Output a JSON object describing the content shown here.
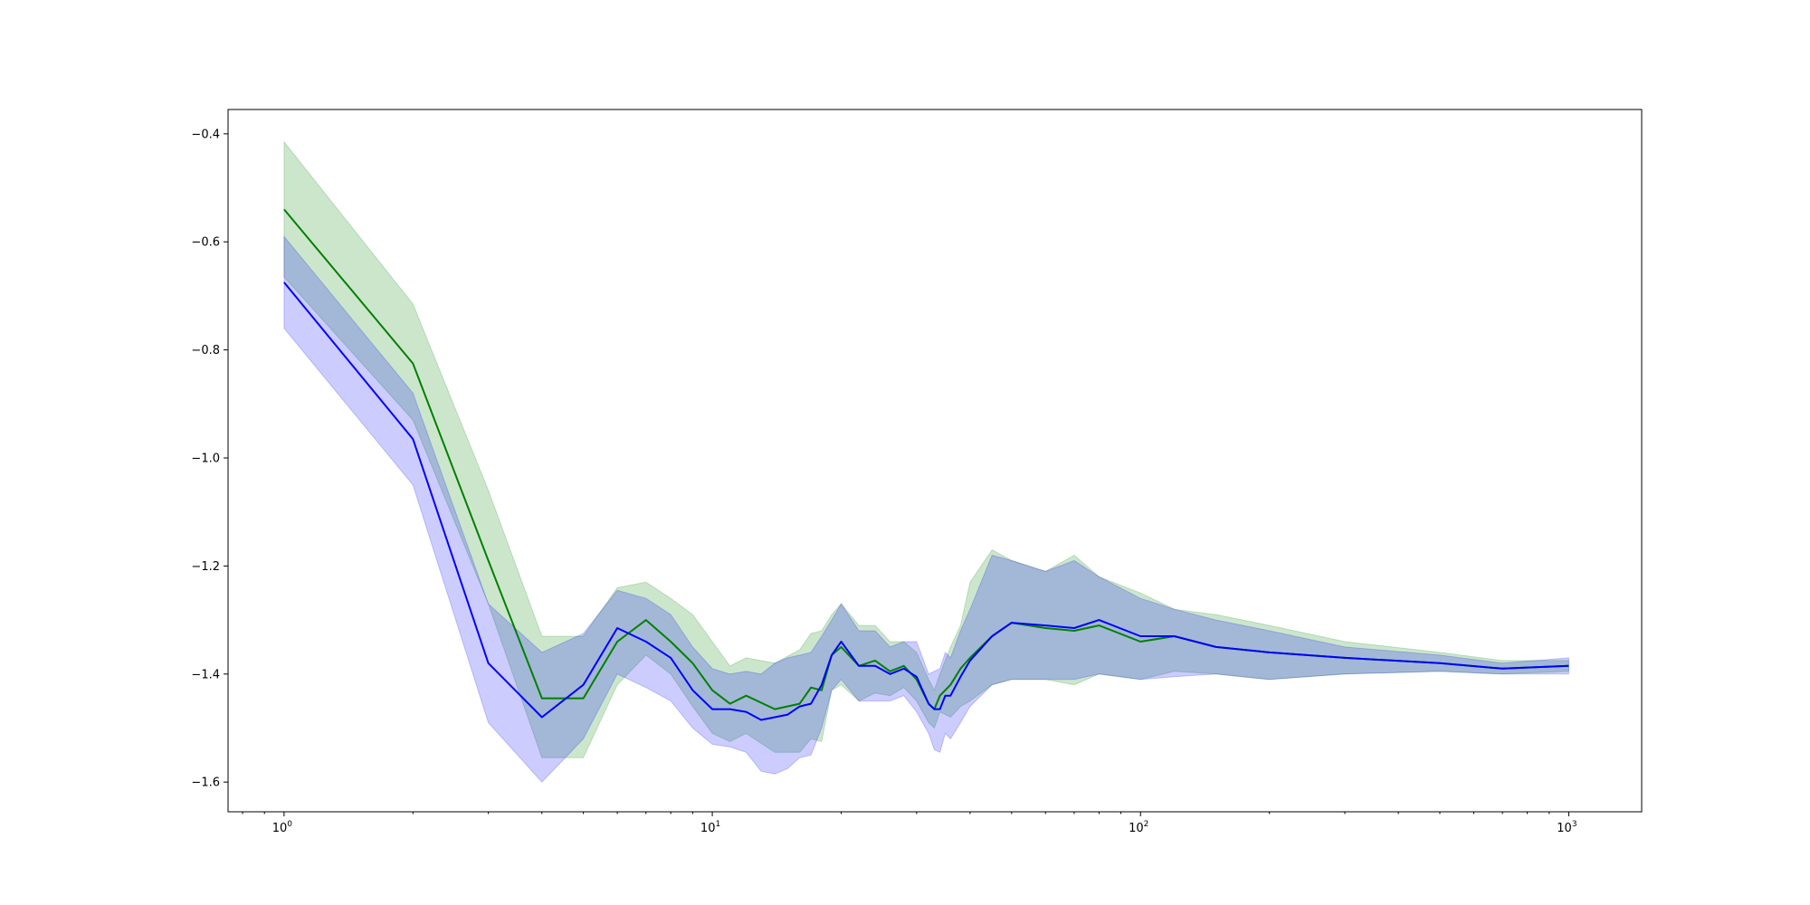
{
  "chart_data": {
    "type": "line",
    "title": "",
    "xlabel": "",
    "ylabel": "",
    "xscale": "log",
    "xlim": [
      0.74,
      1480
    ],
    "ylim": [
      -1.655,
      -0.355
    ],
    "grid": false,
    "legend": "none",
    "x_ticks": [
      {
        "value": 1,
        "base": "10",
        "exp": "0"
      },
      {
        "value": 10,
        "base": "10",
        "exp": "1"
      },
      {
        "value": 100,
        "base": "10",
        "exp": "2"
      },
      {
        "value": 1000,
        "base": "10",
        "exp": "3"
      }
    ],
    "y_ticks": [
      {
        "value": -0.4,
        "label": "−0.4"
      },
      {
        "value": -0.6,
        "label": "−0.6"
      },
      {
        "value": -0.8,
        "label": "−0.8"
      },
      {
        "value": -1.0,
        "label": "−1.0"
      },
      {
        "value": -1.2,
        "label": "−1.2"
      },
      {
        "value": -1.4,
        "label": "−1.4"
      },
      {
        "value": -1.6,
        "label": "−1.6"
      }
    ],
    "series": [
      {
        "color": "#008000",
        "band_color": "#008000",
        "band_opacity": 0.2,
        "x": [
          1,
          2,
          3,
          4,
          5,
          6,
          7,
          8,
          9,
          10,
          11,
          12,
          14,
          16,
          17,
          18,
          19,
          20,
          22,
          24,
          26,
          28,
          30,
          32,
          33,
          34,
          36,
          38,
          40,
          45,
          50,
          60,
          70,
          80,
          100,
          120,
          150,
          200,
          300,
          500,
          700,
          1000
        ],
        "y": [
          -0.54,
          -0.825,
          -1.19,
          -1.445,
          -1.445,
          -1.34,
          -1.3,
          -1.34,
          -1.38,
          -1.43,
          -1.455,
          -1.44,
          -1.465,
          -1.455,
          -1.425,
          -1.43,
          -1.365,
          -1.35,
          -1.385,
          -1.375,
          -1.395,
          -1.385,
          -1.41,
          -1.455,
          -1.465,
          -1.44,
          -1.42,
          -1.39,
          -1.37,
          -1.33,
          -1.305,
          -1.315,
          -1.32,
          -1.31,
          -1.34,
          -1.33,
          -1.35,
          -1.36,
          -1.37,
          -1.38,
          -1.39,
          -1.385
        ],
        "lower": [
          -0.665,
          -0.92,
          -1.27,
          -1.345,
          -1.335,
          -1.245,
          -1.235,
          -1.27,
          -1.3,
          -1.345,
          -1.39,
          -1.375,
          -1.385,
          -1.36,
          -1.33,
          -1.325,
          -1.3,
          -1.28,
          -1.32,
          -1.32,
          -1.35,
          -1.345,
          -1.37,
          -1.42,
          -1.44,
          -1.41,
          -1.36,
          -1.32,
          -1.24,
          -1.18,
          -1.2,
          -1.22,
          -1.19,
          -1.23,
          -1.26,
          -1.29,
          -1.3,
          -1.32,
          -1.35,
          -1.365,
          -1.38,
          -1.38
        ],
        "upper": [
          -0.415,
          -0.715,
          -1.06,
          -1.33,
          -1.33,
          -1.24,
          -1.23,
          -1.26,
          -1.29,
          -1.34,
          -1.385,
          -1.37,
          -1.38,
          -1.355,
          -1.325,
          -1.32,
          -1.29,
          -1.27,
          -1.31,
          -1.31,
          -1.34,
          -1.34,
          -1.36,
          -1.41,
          -1.43,
          -1.4,
          -1.35,
          -1.31,
          -1.23,
          -1.17,
          -1.19,
          -1.21,
          -1.18,
          -1.22,
          -1.25,
          -1.28,
          -1.29,
          -1.31,
          -1.34,
          -1.36,
          -1.375,
          -1.375
        ],
        "lower_band": [
          -0.665,
          -0.93,
          -1.27,
          -1.555,
          -1.555,
          -1.42,
          -1.365,
          -1.4,
          -1.46,
          -1.51,
          -1.525,
          -1.51,
          -1.545,
          -1.545,
          -1.52,
          -1.525,
          -1.43,
          -1.42,
          -1.45,
          -1.435,
          -1.44,
          -1.425,
          -1.45,
          -1.49,
          -1.5,
          -1.47,
          -1.48,
          -1.46,
          -1.45,
          -1.42,
          -1.41,
          -1.41,
          -1.42,
          -1.4,
          -1.41,
          -1.395,
          -1.4,
          -1.41,
          -1.4,
          -1.395,
          -1.4,
          -1.395
        ]
      },
      {
        "color": "#0000ff",
        "band_color": "#0000ff",
        "band_opacity": 0.2,
        "x": [
          1,
          2,
          3,
          4,
          5,
          6,
          7,
          8,
          9,
          10,
          11,
          12,
          13,
          14,
          15,
          16,
          17,
          18,
          19,
          20,
          22,
          24,
          26,
          28,
          30,
          32,
          33,
          34,
          35,
          36,
          38,
          40,
          45,
          50,
          60,
          70,
          80,
          100,
          120,
          150,
          200,
          300,
          500,
          700,
          1000
        ],
        "y": [
          -0.675,
          -0.965,
          -1.38,
          -1.48,
          -1.42,
          -1.315,
          -1.34,
          -1.37,
          -1.43,
          -1.465,
          -1.465,
          -1.47,
          -1.485,
          -1.48,
          -1.475,
          -1.46,
          -1.455,
          -1.42,
          -1.365,
          -1.34,
          -1.385,
          -1.385,
          -1.4,
          -1.39,
          -1.405,
          -1.455,
          -1.465,
          -1.465,
          -1.44,
          -1.44,
          -1.405,
          -1.375,
          -1.33,
          -1.305,
          -1.31,
          -1.315,
          -1.3,
          -1.33,
          -1.33,
          -1.35,
          -1.36,
          -1.37,
          -1.38,
          -1.39,
          -1.385
        ],
        "lower": [
          -0.76,
          -1.05,
          -1.49,
          -1.6,
          -1.52,
          -1.4,
          -1.425,
          -1.45,
          -1.5,
          -1.53,
          -1.535,
          -1.545,
          -1.58,
          -1.585,
          -1.575,
          -1.555,
          -1.55,
          -1.5,
          -1.43,
          -1.41,
          -1.45,
          -1.45,
          -1.45,
          -1.44,
          -1.47,
          -1.51,
          -1.54,
          -1.545,
          -1.51,
          -1.52,
          -1.49,
          -1.46,
          -1.42,
          -1.41,
          -1.41,
          -1.41,
          -1.4,
          -1.41,
          -1.405,
          -1.4,
          -1.41,
          -1.4,
          -1.395,
          -1.4,
          -1.4
        ],
        "upper": [
          -0.59,
          -0.88,
          -1.27,
          -1.36,
          -1.325,
          -1.245,
          -1.26,
          -1.29,
          -1.35,
          -1.39,
          -1.4,
          -1.395,
          -1.4,
          -1.38,
          -1.37,
          -1.365,
          -1.36,
          -1.33,
          -1.3,
          -1.27,
          -1.32,
          -1.32,
          -1.35,
          -1.34,
          -1.34,
          -1.4,
          -1.395,
          -1.39,
          -1.36,
          -1.37,
          -1.32,
          -1.28,
          -1.18,
          -1.19,
          -1.21,
          -1.19,
          -1.22,
          -1.26,
          -1.28,
          -1.3,
          -1.32,
          -1.35,
          -1.365,
          -1.38,
          -1.37
        ]
      }
    ]
  }
}
